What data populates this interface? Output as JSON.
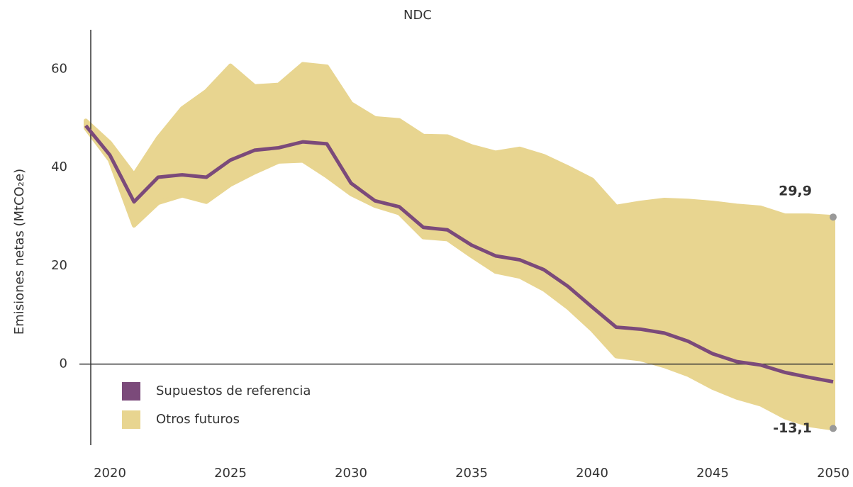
{
  "chart_data": {
    "type": "line",
    "title": "NDC",
    "y_label": "Emisiones netas (MtCO₂e)",
    "x": [
      2019,
      2020,
      2021,
      2022,
      2023,
      2024,
      2025,
      2026,
      2027,
      2028,
      2029,
      2030,
      2031,
      2032,
      2033,
      2034,
      2035,
      2036,
      2037,
      2038,
      2039,
      2040,
      2041,
      2042,
      2043,
      2044,
      2045,
      2046,
      2047,
      2048,
      2049,
      2050
    ],
    "series": [
      {
        "name": "Supuestos de referencia",
        "color": "#7b4a7a",
        "values": [
          48.5,
          42.5,
          33,
          38,
          38.5,
          38,
          41.5,
          43.5,
          44,
          45.2,
          44.8,
          36.8,
          33.2,
          32,
          27.8,
          27.3,
          24.2,
          22,
          21.2,
          19.2,
          15.8,
          11.6,
          7.5,
          7.1,
          6.3,
          4.6,
          2.1,
          0.5,
          -0.2,
          -1.7,
          -2.7,
          -3.6
        ]
      },
      {
        "name": "Otros futuros",
        "color": "#e8d590",
        "upper": [
          49.5,
          45,
          38.5,
          46,
          52,
          55.5,
          60.7,
          56.5,
          56.8,
          61,
          60.5,
          53,
          50,
          49.6,
          46.4,
          46.3,
          44.3,
          43,
          43.8,
          42.3,
          40,
          37.5,
          32,
          32.8,
          33.4,
          33.2,
          32.8,
          32.2,
          31.8,
          30.2,
          30.2,
          29.9
        ],
        "lower": [
          48,
          41.5,
          28.2,
          32.8,
          34.3,
          33,
          36.5,
          39,
          41.2,
          41.4,
          38.2,
          34.6,
          32.2,
          30.7,
          25.8,
          25.4,
          22,
          18.8,
          17.8,
          15.2,
          11.5,
          7,
          1.6,
          1,
          -0.4,
          -2.2,
          -4.8,
          -6.8,
          -8.2,
          -10.8,
          -12.4,
          -13.1
        ]
      }
    ],
    "annotations": [
      {
        "text": "29,9",
        "x": 2050,
        "y": 29.9
      },
      {
        "text": "-13,1",
        "x": 2050,
        "y": -13.1
      }
    ],
    "xlim": [
      2019,
      2050
    ],
    "xticks": [
      2020,
      2025,
      2030,
      2035,
      2040,
      2045,
      2050
    ],
    "ylim": [
      -16.5,
      68
    ],
    "yticks": [
      0,
      20,
      40,
      60
    ],
    "grid": false
  }
}
